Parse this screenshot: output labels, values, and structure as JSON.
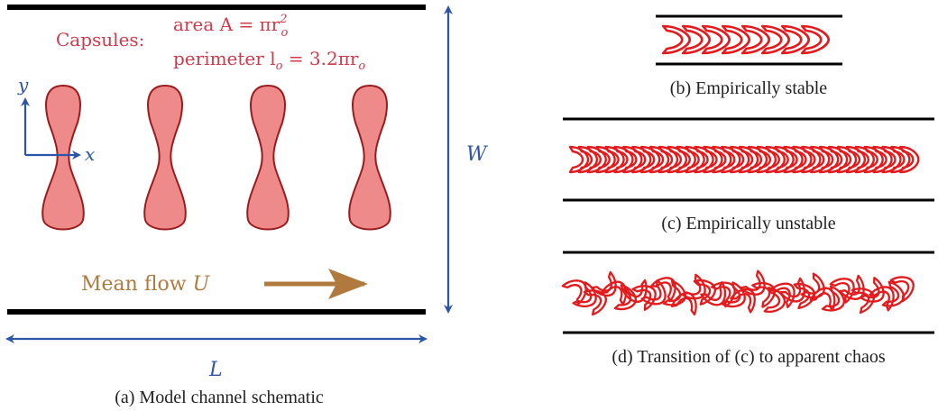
{
  "panel_a": {
    "caption": "(a) Model channel schematic",
    "capsules_label": "Capsules:",
    "area_label": "area A = πr",
    "area_superscript": "2",
    "area_subscript": "o",
    "perimeter_label": "perimeter l",
    "perimeter_subscript": "o",
    "perimeter_value": " = 3.2πr",
    "perimeter_value_subscript": "o",
    "axis_y": "y",
    "axis_x": "x",
    "width_label": "W",
    "length_label": "L",
    "flow_label": "Mean flow ",
    "flow_symbol": "U",
    "colors": {
      "capsule_fill": "#ef8a8a",
      "capsule_stroke": "#9b1c1c",
      "annotation": "#d03a4a",
      "axes": "#2a55a8",
      "flow": "#b07a3e",
      "walls": "#000000"
    }
  },
  "panel_b": {
    "caption": "(b) Empirically stable"
  },
  "panel_c": {
    "caption": "(c) Empirically unstable"
  },
  "panel_d": {
    "caption": "(d) Transition of (c) to apparent chaos"
  },
  "train_color": "#e41a1c"
}
